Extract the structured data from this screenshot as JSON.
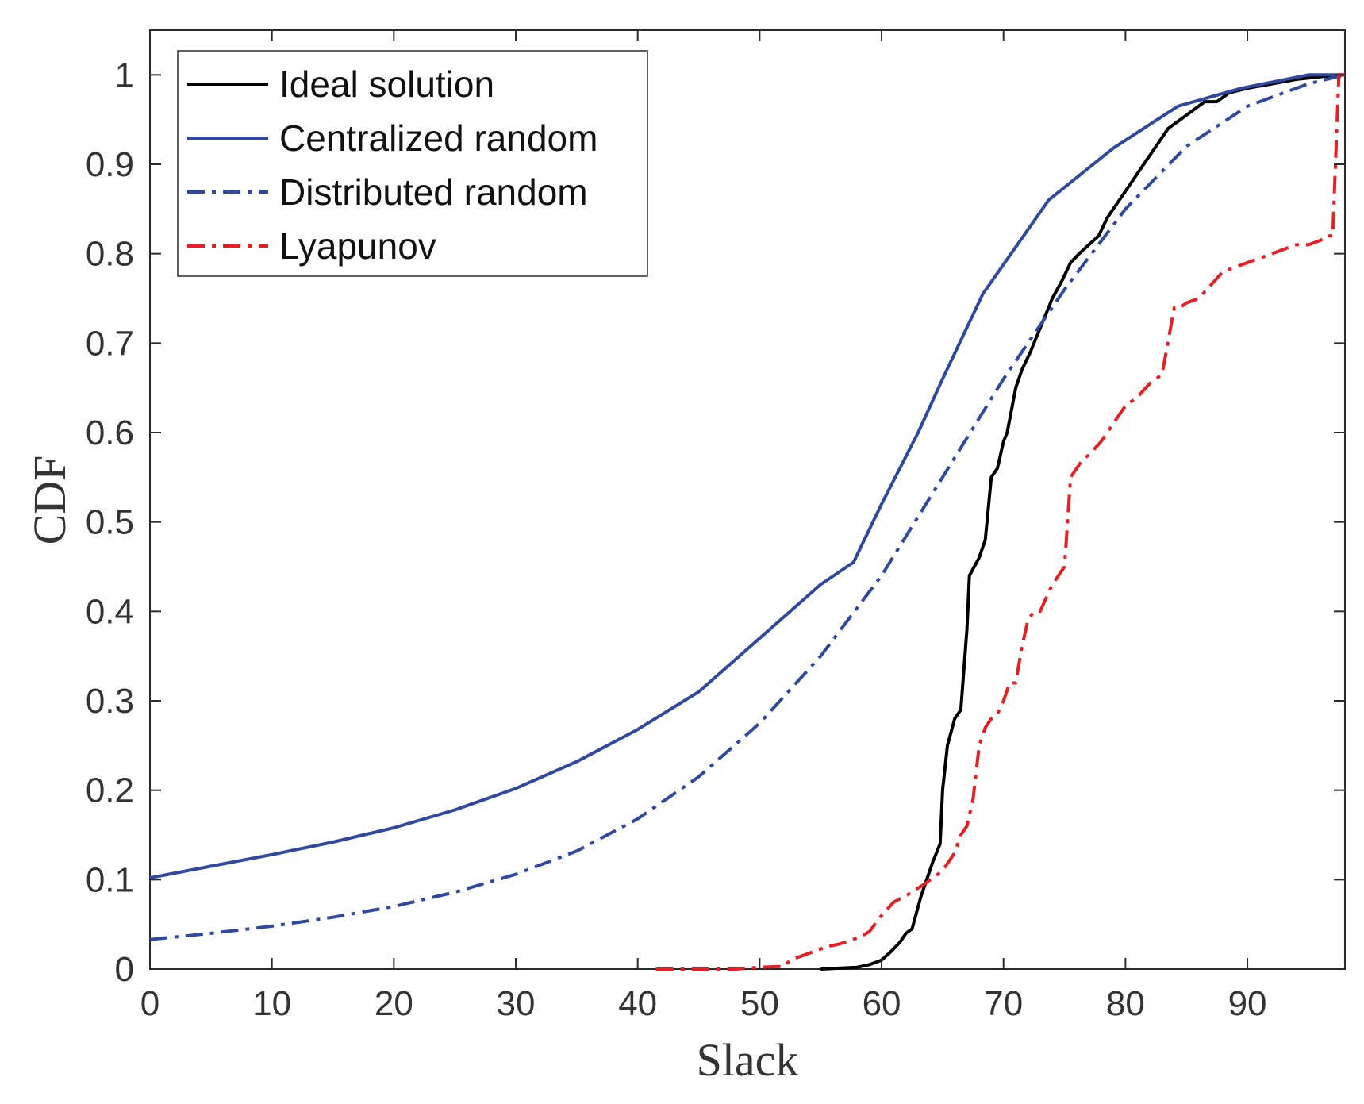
{
  "chart_data": {
    "type": "line",
    "title": "",
    "xlabel": "Slack",
    "ylabel": "CDF",
    "xlim": [
      0,
      98
    ],
    "ylim": [
      0,
      1.05
    ],
    "xticks": [
      0,
      10,
      20,
      30,
      40,
      50,
      60,
      70,
      80,
      90
    ],
    "xtick_labels": [
      "0",
      "10",
      "20",
      "30",
      "40",
      "50",
      "60",
      "70",
      "80",
      "90"
    ],
    "yticks": [
      0,
      0.1,
      0.2,
      0.3,
      0.4,
      0.5,
      0.6,
      0.7,
      0.8,
      0.9,
      1
    ],
    "ytick_labels": [
      "0",
      "0.1",
      "0.2",
      "0.3",
      "0.4",
      "0.5",
      "0.6",
      "0.7",
      "0.8",
      "0.9",
      "1"
    ],
    "grid": false,
    "legend_position": "top-left",
    "series": [
      {
        "name": "Ideal solution",
        "color": "#000000",
        "dash": "solid",
        "x": [
          55,
          58,
          59,
          60,
          60.8,
          61.5,
          62,
          62.5,
          63.2,
          63.7,
          64.2,
          64.8,
          65,
          65.4,
          66,
          66.5,
          67,
          67.2,
          67.6,
          68,
          68.5,
          69,
          69.5,
          70,
          70.3,
          71,
          71.5,
          72.2,
          72.8,
          73.4,
          74,
          74.8,
          75.5,
          76.2,
          77,
          77.8,
          78.5,
          79.5,
          80.5,
          81.5,
          82.5,
          83.5,
          84.5,
          85.5,
          86.5,
          87.5,
          88.5,
          90,
          92,
          94,
          96,
          98
        ],
        "y": [
          0,
          0.002,
          0.005,
          0.01,
          0.02,
          0.03,
          0.04,
          0.045,
          0.08,
          0.1,
          0.12,
          0.14,
          0.2,
          0.25,
          0.28,
          0.29,
          0.38,
          0.44,
          0.45,
          0.46,
          0.48,
          0.55,
          0.56,
          0.59,
          0.6,
          0.65,
          0.67,
          0.69,
          0.71,
          0.73,
          0.75,
          0.77,
          0.79,
          0.8,
          0.81,
          0.82,
          0.84,
          0.86,
          0.88,
          0.9,
          0.92,
          0.94,
          0.95,
          0.96,
          0.97,
          0.97,
          0.98,
          0.985,
          0.99,
          0.995,
          0.998,
          1.0
        ]
      },
      {
        "name": "Centralized random",
        "color": "#2f48a0",
        "dash": "solid",
        "x": [
          0,
          5,
          10,
          15,
          20,
          25,
          30,
          35,
          40,
          45,
          50,
          55,
          57.7,
          60,
          63,
          65,
          68.3,
          73.7,
          79,
          84.3,
          89.5,
          95,
          98
        ],
        "y": [
          0.102,
          0.115,
          0.128,
          0.142,
          0.158,
          0.178,
          0.202,
          0.232,
          0.268,
          0.31,
          0.37,
          0.43,
          0.455,
          0.52,
          0.6,
          0.66,
          0.755,
          0.86,
          0.918,
          0.965,
          0.985,
          1.0,
          1.0
        ]
      },
      {
        "name": "Distributed random",
        "color": "#2f48a0",
        "dash": "dashdot",
        "x": [
          0,
          5,
          10,
          15,
          20,
          25,
          30,
          35,
          40,
          45,
          50,
          55,
          60,
          65,
          70,
          75,
          80,
          85,
          90,
          95,
          98
        ],
        "y": [
          0.033,
          0.04,
          0.048,
          0.058,
          0.07,
          0.086,
          0.106,
          0.132,
          0.168,
          0.215,
          0.275,
          0.35,
          0.44,
          0.55,
          0.66,
          0.76,
          0.85,
          0.92,
          0.965,
          0.99,
          1.0
        ]
      },
      {
        "name": "Lyapunov",
        "color": "#e81e25",
        "dash": "dashdot",
        "x": [
          41.5,
          48,
          50,
          52,
          52.5,
          53.5,
          54.5,
          55.5,
          56.5,
          57.5,
          58.5,
          59,
          60,
          61,
          62,
          63.5,
          64.5,
          65,
          66,
          66.5,
          67,
          67.5,
          68,
          68.5,
          69,
          69.5,
          70,
          70.5,
          71,
          71.5,
          72,
          72.5,
          73,
          74,
          74.5,
          75,
          75.5,
          76,
          76.5,
          77,
          78,
          79,
          80,
          81,
          82,
          83,
          84,
          84.5,
          85,
          86,
          87,
          88,
          89,
          90,
          91,
          92,
          93,
          94,
          95,
          96,
          96.5,
          97,
          97.5,
          98
        ],
        "y": [
          0,
          0,
          0.002,
          0.003,
          0.01,
          0.015,
          0.02,
          0.025,
          0.028,
          0.032,
          0.038,
          0.042,
          0.06,
          0.075,
          0.082,
          0.095,
          0.105,
          0.11,
          0.13,
          0.15,
          0.16,
          0.19,
          0.25,
          0.27,
          0.28,
          0.285,
          0.3,
          0.32,
          0.32,
          0.36,
          0.39,
          0.4,
          0.4,
          0.43,
          0.44,
          0.45,
          0.55,
          0.56,
          0.57,
          0.575,
          0.59,
          0.61,
          0.63,
          0.64,
          0.655,
          0.665,
          0.74,
          0.74,
          0.745,
          0.75,
          0.765,
          0.78,
          0.785,
          0.79,
          0.795,
          0.8,
          0.805,
          0.81,
          0.81,
          0.815,
          0.82,
          0.82,
          1.0,
          1.0
        ]
      }
    ]
  }
}
